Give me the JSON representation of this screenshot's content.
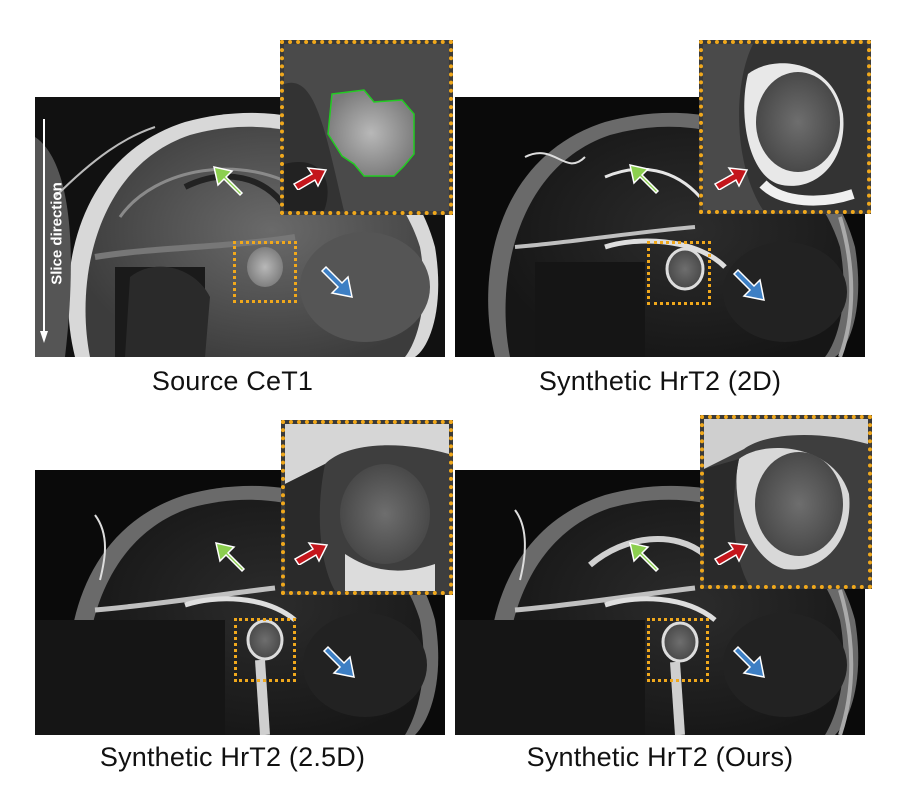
{
  "panels": [
    {
      "caption": "Source CeT1",
      "style": "t1"
    },
    {
      "caption": "Synthetic HrT2 (2D)",
      "style": "t2"
    },
    {
      "caption": "Synthetic HrT2 (2.5D)",
      "style": "t2"
    },
    {
      "caption": "Synthetic HrT2 (Ours)",
      "style": "t2"
    }
  ],
  "slice_direction_label": "Slice direction",
  "colors": {
    "roi_border": "#f0a81c",
    "arrow_green": "#8ccf4f",
    "arrow_red": "#c4161c",
    "arrow_blue": "#3d7fc4",
    "tumor_outline": "#22cc22"
  },
  "icons": [
    "green-arrow-icon",
    "red-arrow-icon",
    "blue-arrow-icon"
  ]
}
